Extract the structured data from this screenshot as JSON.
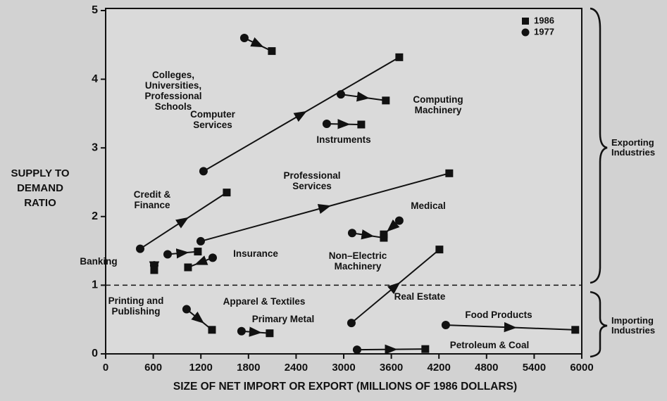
{
  "chart_data": {
    "type": "arrow_scatter",
    "x_label": "SIZE OF NET IMPORT OR EXPORT (MILLIONS OF 1986 DOLLARS)",
    "y_label": "SUPPLY TO DEMAND RATIO",
    "categories": [
      "Colleges, Universities, Professional Schools",
      "Computer Services",
      "Computing Machinery",
      "Instruments",
      "Professional Services",
      "Credit & Finance",
      "Medical",
      "Non–Electric Machinery",
      "Banking",
      "Insurance",
      "Printing and Publishing",
      "Apparel & Textiles",
      "Primary Metal",
      "Real Estate",
      "Food Products",
      "Petroleum & Coal"
    ],
    "series": [
      {
        "name": "1986",
        "marker": "square",
        "color": "#111111",
        "x": [
          2094,
          3700,
          3531,
          3221,
          4330,
          1526,
          3505,
          3505,
          1162,
          1038,
          612,
          1340,
          2067,
          4206,
          5918,
          4028
        ],
        "values": [
          4.41,
          4.32,
          3.69,
          3.34,
          2.63,
          2.35,
          1.74,
          1.69,
          1.49,
          1.26,
          1.22,
          0.35,
          0.3,
          1.52,
          0.35,
          0.07
        ]
      },
      {
        "name": "1977",
        "marker": "circle",
        "color": "#111111",
        "x": [
          1748,
          1233,
          2964,
          2786,
          1198,
          435,
          3700,
          3106,
          781,
          1349,
          612,
          1020,
          1712,
          3097,
          4286,
          3168
        ],
        "values": [
          4.6,
          2.66,
          3.78,
          3.35,
          1.64,
          1.53,
          1.94,
          1.76,
          1.45,
          1.4,
          1.29,
          0.65,
          0.33,
          0.45,
          0.42,
          0.06
        ]
      }
    ],
    "xlim": [
      0,
      6000
    ],
    "xticks": [
      0,
      600,
      1200,
      1800,
      2400,
      3000,
      3600,
      4200,
      4800,
      5400,
      6000
    ],
    "ylim": [
      0,
      5
    ],
    "yticks": [
      0,
      1,
      2,
      3,
      4,
      5
    ],
    "hline": 1,
    "annotations": [
      "Exporting Industries",
      "Importing Industries"
    ],
    "legend": "upper right"
  }
}
